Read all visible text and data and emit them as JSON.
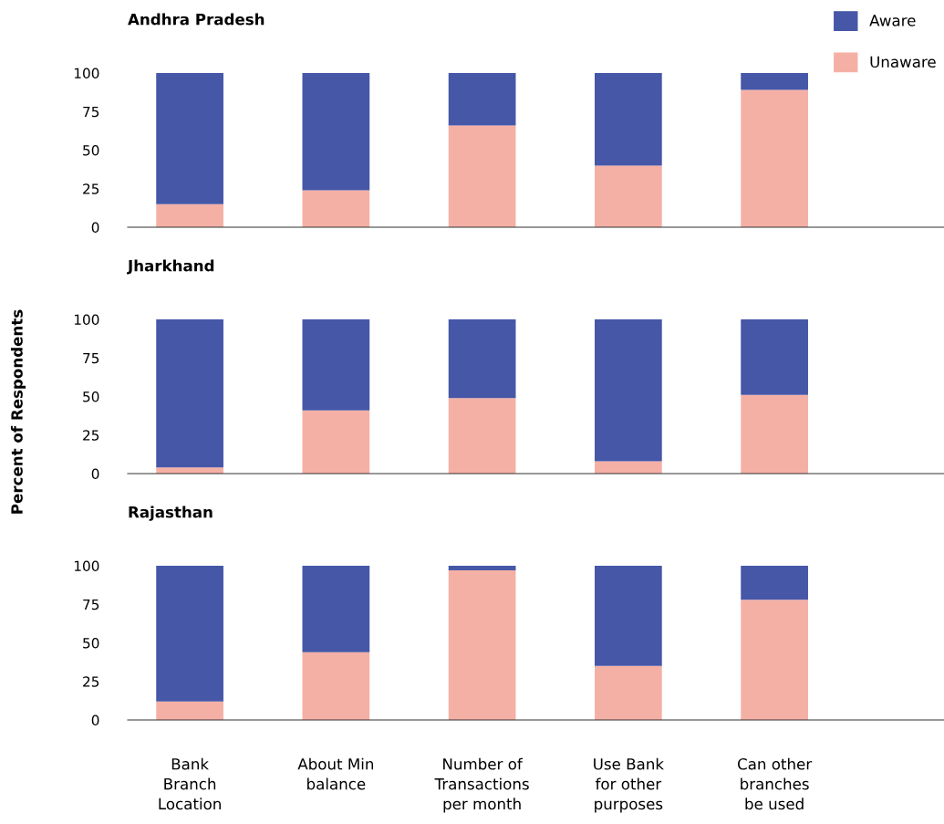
{
  "chart_data": [
    {
      "type": "bar",
      "title": "Andhra Pradesh",
      "ylabel": "Percent of Respondents",
      "stacked": true,
      "legend": "top right",
      "categories": [
        null,
        null,
        null,
        null,
        null
      ],
      "ylim": [
        0,
        100
      ],
      "yticks": [
        0,
        25,
        50,
        75,
        100
      ],
      "grid": false,
      "series": [
        {
          "name": "Unaware",
          "color": "#f5b0a6",
          "values": [
            15,
            24,
            66,
            40,
            89
          ]
        },
        {
          "name": "Aware",
          "color": "#4657a7",
          "values": [
            85,
            76,
            34,
            60,
            11
          ]
        }
      ]
    },
    {
      "type": "bar",
      "title": "Jharkhand",
      "stacked": true,
      "categories": [
        null,
        null,
        null,
        null,
        null
      ],
      "ylim": [
        0,
        100
      ],
      "yticks": [
        0,
        25,
        50,
        75,
        100
      ],
      "grid": false,
      "series": [
        {
          "color": "#f5b0a6",
          "values": [
            4,
            41,
            49,
            8,
            51
          ]
        },
        {
          "color": "#4657a7",
          "values": [
            96,
            59,
            51,
            92,
            49
          ]
        }
      ]
    },
    {
      "type": "bar",
      "title": "Rajasthan",
      "stacked": true,
      "categories": [
        "Bank\nBranch\nLocation",
        "About Min\nbalance",
        "Number of\nTransactions\nper month",
        "Use Bank\nfor other\npurposes",
        "Can other\nbranches\nbe used"
      ],
      "ylim": [
        0,
        100
      ],
      "yticks": [
        0,
        25,
        50,
        75,
        100
      ],
      "grid": false,
      "series": [
        {
          "color": "#f5b0a6",
          "values": [
            12,
            44,
            97,
            35,
            78
          ]
        },
        {
          "color": "#4657a7",
          "values": [
            88,
            56,
            3,
            65,
            22
          ]
        }
      ]
    }
  ]
}
